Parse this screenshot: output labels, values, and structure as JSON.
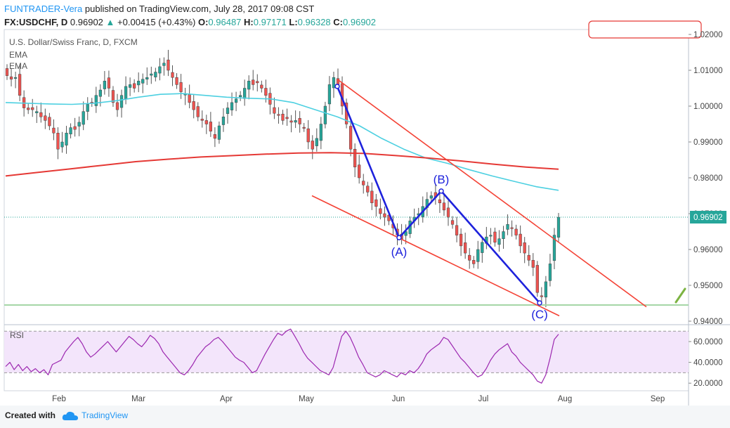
{
  "header": {
    "author": "FUNTRADER-Vera",
    "published": "published on TradingView.com, July 28, 2017 09:08 CST",
    "symbol": "FX:USDCHF, D",
    "last": "0.96902",
    "change": "+0.00415 (+0.43%)",
    "open_label": "O:",
    "open": "0.96487",
    "high_label": "H:",
    "high": "0.97171",
    "low_label": "L:",
    "low": "0.96328",
    "close_label": "C:",
    "close": "0.96902"
  },
  "legend": {
    "title": "U.S. Dollar/Swiss Franc, D, FXCM",
    "ema1": "EMA",
    "ema2": "EMA"
  },
  "footer": {
    "created": "Created with",
    "brand": "TradingView"
  },
  "colors": {
    "up": "#26a69a",
    "down": "#ef5350",
    "ema_fast": "#4dd0e1",
    "ema_slow": "#e53935",
    "pattern": "#1e22dc",
    "channel": "#f44336",
    "support": "#a5d6a7",
    "rsi": "#9c27b0",
    "rsi_band": "#f3e5fb",
    "price_badge": "#26a69a"
  },
  "chart_data": [
    {
      "type": "candlestick",
      "title": "U.S. Dollar/Swiss Franc, D, FXCM",
      "x_tick_labels": [
        "Feb",
        "Mar",
        "Apr",
        "May",
        "Jun",
        "Jul",
        "Aug",
        "Sep"
      ],
      "y_tick_labels": [
        "1.02000",
        "1.01000",
        "1.00000",
        "0.99000",
        "0.98000",
        "0.97000",
        "0.96000",
        "0.95000",
        "0.94000"
      ],
      "ylim": [
        0.94,
        1.022
      ],
      "last_price_label": "0.96902",
      "close_series": [
        1.0085,
        1.0075,
        1.008,
        1.003,
        0.9995,
        0.999,
        0.999,
        0.9985,
        0.997,
        0.996,
        0.9945,
        0.9925,
        0.988,
        0.99,
        0.9925,
        0.994,
        0.9935,
        0.9955,
        0.9985,
        1.0005,
        1.001,
        1.003,
        1.0045,
        1.007,
        1.005,
        1.001,
        0.999,
        1.003,
        1.0055,
        1.006,
        1.005,
        1.007,
        1.0075,
        1.008,
        1.009,
        1.0095,
        1.011,
        1.012,
        1.01,
        1.008,
        1.006,
        1.004,
        1.0035,
        1.001,
        0.999,
        0.997,
        0.996,
        0.995,
        0.993,
        0.991,
        0.9945,
        0.997,
        0.9995,
        1.001,
        1.002,
        1.003,
        1.005,
        1.007,
        1.006,
        1.0065,
        1.005,
        1.003,
        1.0005,
        0.998,
        0.9975,
        0.996,
        0.9965,
        0.9955,
        0.996,
        0.995,
        0.994,
        0.99,
        0.988,
        0.991,
        0.995,
        1.0,
        1.006,
        1.008,
        1.006,
        1.0,
        0.995,
        0.988,
        0.983,
        0.98,
        0.978,
        0.976,
        0.973,
        0.972,
        0.97,
        0.969,
        0.968,
        0.966,
        0.964,
        0.963,
        0.965,
        0.968,
        0.969,
        0.97,
        0.972,
        0.974,
        0.975,
        0.9745,
        0.973,
        0.971,
        0.969,
        0.967,
        0.964,
        0.961,
        0.959,
        0.957,
        0.956,
        0.96,
        0.962,
        0.9635,
        0.964,
        0.962,
        0.963,
        0.965,
        0.967,
        0.966,
        0.964,
        0.961,
        0.959,
        0.957,
        0.955,
        0.948,
        0.947,
        0.951,
        0.956,
        0.964,
        0.969
      ],
      "series": [
        {
          "name": "EMA",
          "values": [
            1.001,
            1.0008,
            1.0006,
            1.0005,
            1.0008,
            1.0015,
            1.0025,
            1.0033,
            1.0035,
            1.003,
            1.0025,
            1.0022,
            1.002,
            1.001,
            0.999,
            0.997,
            0.9945,
            0.991,
            0.988,
            0.9855,
            0.984,
            0.9822,
            0.9805,
            0.979,
            0.9775,
            0.9765
          ]
        },
        {
          "name": "EMA",
          "values": [
            0.9805,
            0.9815,
            0.9825,
            0.9835,
            0.9845,
            0.9852,
            0.9858,
            0.9862,
            0.9866,
            0.9869,
            0.987,
            0.9868,
            0.9862,
            0.9855,
            0.9847,
            0.9838,
            0.983,
            0.9824
          ]
        }
      ],
      "pattern": {
        "labels": [
          "(A)",
          "(B)",
          "(C)"
        ],
        "points": [
          {
            "date": "2017-05-10",
            "value": 1.0055
          },
          {
            "date": "2017-06-01",
            "value": 0.9633
          },
          {
            "date": "2017-06-16",
            "value": 0.9763
          },
          {
            "date": "2017-07-21",
            "value": 0.9451
          }
        ]
      },
      "trendlines": {
        "upper": [
          {
            "date": "2017-05-10",
            "value": 1.0075
          },
          {
            "date": "2017-08-28",
            "value": 0.944
          }
        ],
        "lower": [
          {
            "date": "2017-05-01",
            "value": 0.975
          },
          {
            "date": "2017-07-28",
            "value": 0.9415
          }
        ],
        "support": 0.9445
      }
    },
    {
      "type": "line",
      "title": "RSI",
      "y_tick_labels": [
        "60.0000",
        "40.0000",
        "20.0000"
      ],
      "ylim": [
        15,
        80
      ],
      "bands": [
        70,
        30
      ],
      "values": [
        36,
        40,
        33,
        38,
        32,
        36,
        31,
        34,
        30,
        33,
        28,
        38,
        40,
        42,
        50,
        55,
        60,
        64,
        58,
        50,
        45,
        48,
        52,
        56,
        60,
        55,
        50,
        55,
        60,
        65,
        62,
        58,
        55,
        60,
        66,
        63,
        58,
        50,
        45,
        40,
        35,
        30,
        28,
        32,
        38,
        45,
        50,
        55,
        58,
        62,
        64,
        60,
        55,
        50,
        45,
        42,
        40,
        35,
        30,
        32,
        40,
        48,
        55,
        62,
        68,
        66,
        70,
        72,
        65,
        58,
        50,
        44,
        40,
        36,
        32,
        30,
        28,
        35,
        50,
        65,
        70,
        64,
        55,
        45,
        38,
        30,
        28,
        26,
        28,
        32,
        30,
        28,
        26,
        30,
        28,
        32,
        30,
        34,
        40,
        48,
        52,
        55,
        58,
        64,
        62,
        56,
        50,
        44,
        40,
        35,
        30,
        26,
        28,
        34,
        42,
        48,
        52,
        55,
        58,
        50,
        46,
        40,
        36,
        32,
        28,
        22,
        20,
        28,
        44,
        62,
        67
      ]
    }
  ]
}
